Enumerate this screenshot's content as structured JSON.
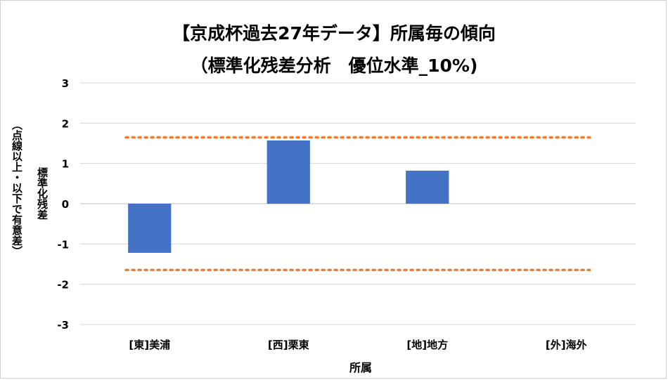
{
  "chart_data": {
    "type": "bar",
    "title_line1": "【京成杯過去27年データ】所属毎の傾向",
    "title_line2": "（標準化残差分析　優位水準_10%)",
    "ylabel_main": "標準化残差",
    "ylabel_sub": "（点線以上・以下で有意差）",
    "xlabel": "所属",
    "categories": [
      "[東]美浦",
      "[西]栗東",
      "[地]地方",
      "[外]海外"
    ],
    "values": [
      -1.22,
      1.57,
      0.82,
      0
    ],
    "ylim": [
      -3,
      3
    ],
    "yticks": [
      "3",
      "2",
      "1",
      "0",
      "-1",
      "-2",
      "-3"
    ],
    "threshold_upper": 1.645,
    "threshold_lower": -1.645,
    "grid": true,
    "legend": "none",
    "colors": {
      "bar": "#4472C4",
      "threshold": "#ED7D31",
      "grid": "#D9D9D9",
      "axis": "#BFBFBF"
    }
  }
}
